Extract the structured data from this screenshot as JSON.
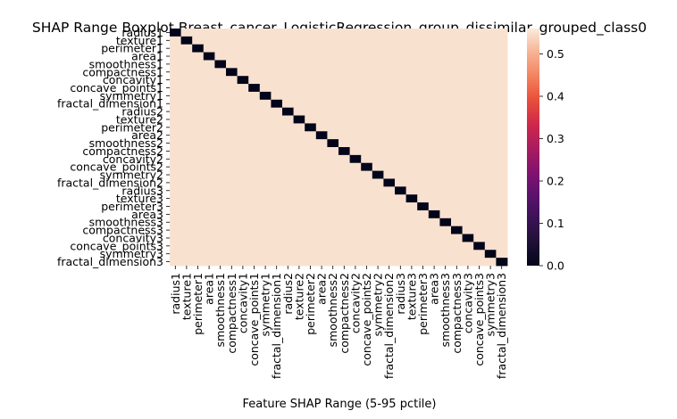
{
  "chart_data": {
    "type": "heatmap",
    "title": "SHAP Range Boxplot Breast_cancer_LogisticRegression_group_dissimilar_grouped_class0",
    "xlabel": "Feature SHAP Range (5-95 pctile)",
    "ylabel": "",
    "features": [
      "radius1",
      "texture1",
      "perimeter1",
      "area1",
      "smoothness1",
      "compactness1",
      "concavity1",
      "concave_points1",
      "symmetry1",
      "fractal_dimension1",
      "radius2",
      "texture2",
      "perimeter2",
      "area2",
      "smoothness2",
      "compactness2",
      "concavity2",
      "concave_points2",
      "symmetry2",
      "fractal_dimension2",
      "radius3",
      "texture3",
      "perimeter3",
      "area3",
      "smoothness3",
      "compactness3",
      "concavity3",
      "concave_points3",
      "symmetry3",
      "fractal_dimension3"
    ],
    "diagonal_value": 0.0,
    "off_diagonal_value": 0.55,
    "colorbar": {
      "min": 0.0,
      "max": 0.56,
      "ticks": [
        "0.0",
        "0.1",
        "0.2",
        "0.3",
        "0.4",
        "0.5"
      ],
      "tick_values": [
        0.0,
        0.1,
        0.2,
        0.3,
        0.4,
        0.5
      ],
      "colormap": "rocket"
    }
  }
}
